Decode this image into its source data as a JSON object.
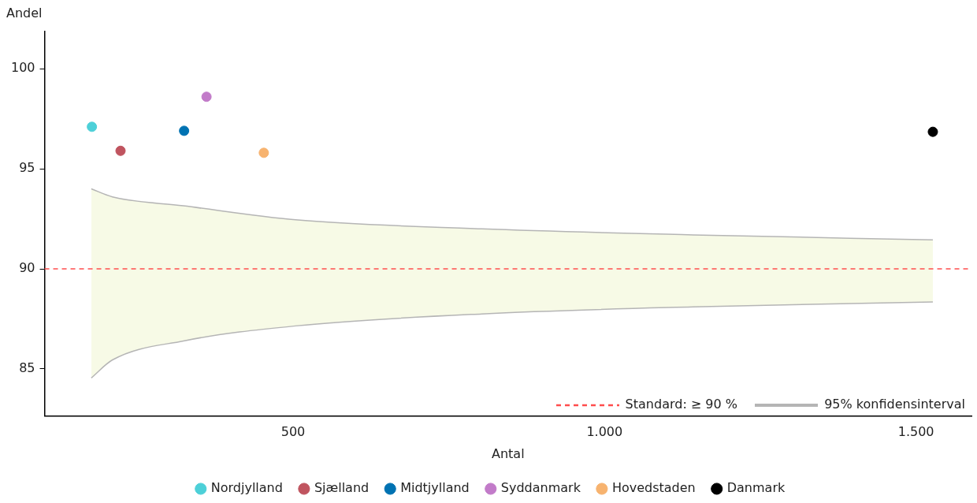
{
  "chart_data": {
    "type": "scatter",
    "xlabel": "Antal",
    "ylabel": "Andel",
    "xlim": [
      101,
      1589
    ],
    "ylim": [
      82.65,
      101.86
    ],
    "xticks": [
      500,
      {
        "value": 1000,
        "label": "1.000"
      },
      {
        "value": 1500,
        "label": "1.500"
      }
    ],
    "yticks": [
      85,
      90,
      95,
      100
    ],
    "grid": false,
    "legend": "bottom",
    "marker": "circle",
    "ref_lines": [
      {
        "axis": "y",
        "value": 90,
        "label": "Standard: ≥ 90 %",
        "color": "#ff4d4d",
        "line_style": "dashed"
      }
    ],
    "series": [
      {
        "name": "Nordjylland",
        "color": "#4dd0d8",
        "x": [
          177
        ],
        "values": [
          97.1
        ]
      },
      {
        "name": "Sjælland",
        "color": "#c0545f",
        "x": [
          223
        ],
        "values": [
          95.9
        ]
      },
      {
        "name": "Midtjylland",
        "color": "#0072b2",
        "x": [
          325
        ],
        "values": [
          96.9
        ]
      },
      {
        "name": "Syddanmark",
        "color": "#c27bc9",
        "x": [
          361
        ],
        "values": [
          98.6
        ]
      },
      {
        "name": "Hovedstaden",
        "color": "#f7b36f",
        "x": [
          453
        ],
        "values": [
          95.8
        ]
      },
      {
        "name": "Danmark",
        "color": "#000000",
        "x": [
          1527
        ],
        "values": [
          96.85
        ]
      },
      {
        "name": "95% konfidensinterval",
        "type": "line",
        "marker": "none",
        "color": "#b5b5b5",
        "x": [
          176,
          210,
          324,
          504,
          803,
          1142,
          1527
        ],
        "values": [
          94.0,
          93.6,
          93.15,
          92.45,
          92.0,
          91.7,
          91.45
        ],
        "lower": [
          84.55,
          85.45,
          86.4,
          87.15,
          87.75,
          88.1,
          88.35
        ],
        "upper": [
          94.0,
          93.6,
          93.15,
          92.45,
          92.0,
          91.7,
          91.45
        ]
      },
      {
        "type": "line",
        "marker": "none",
        "color": "#b5b5b5",
        "x": [
          176,
          210,
          324,
          504,
          803,
          1142,
          1527
        ],
        "values": [
          84.55,
          85.45,
          86.4,
          87.15,
          87.75,
          88.1,
          88.35
        ]
      }
    ]
  }
}
